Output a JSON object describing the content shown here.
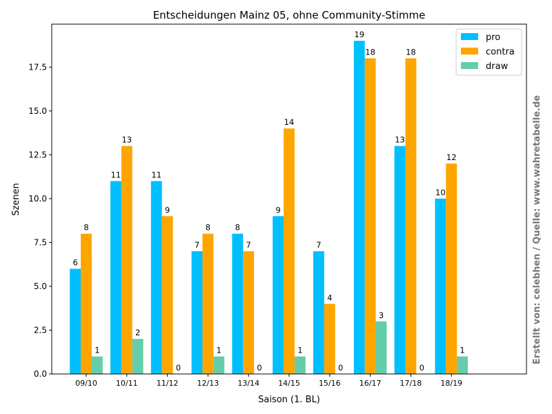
{
  "chart_data": {
    "type": "bar",
    "title": "Entscheidungen Mainz 05, ohne Community-Stimme",
    "xlabel": "Saison (1. BL)",
    "ylabel": "Szenen",
    "categories": [
      "09/10",
      "10/11",
      "11/12",
      "12/13",
      "13/14",
      "14/15",
      "15/16",
      "16/17",
      "17/18",
      "18/19"
    ],
    "series": [
      {
        "name": "pro",
        "color": "#00bfff",
        "values": [
          6,
          11,
          11,
          7,
          8,
          9,
          7,
          19,
          13,
          10
        ]
      },
      {
        "name": "contra",
        "color": "#ffa500",
        "values": [
          8,
          13,
          9,
          8,
          7,
          14,
          4,
          18,
          18,
          12
        ]
      },
      {
        "name": "draw",
        "color": "#66cdaa",
        "values": [
          1,
          2,
          0,
          1,
          0,
          1,
          0,
          3,
          0,
          1
        ]
      }
    ],
    "ylim": [
      0,
      19.95
    ],
    "yticks": [
      "0.0",
      "2.5",
      "5.0",
      "7.5",
      "10.0",
      "12.5",
      "15.0",
      "17.5"
    ],
    "grid": false,
    "legend_position": "top-right",
    "side_note": "Erstellt von: celebhen / Quelle: www.wahretabelle.de",
    "side_note_color": "#777777"
  }
}
